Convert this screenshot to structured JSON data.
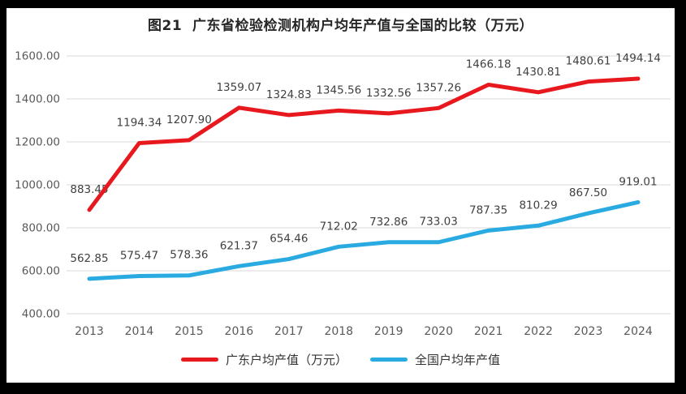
{
  "chart_data": {
    "type": "line",
    "title": "图21  广东省检验检测机构户均年产值与全国的比较（万元）",
    "categories": [
      "2013",
      "2014",
      "2015",
      "2016",
      "2017",
      "2018",
      "2019",
      "2020",
      "2021",
      "2022",
      "2023",
      "2024"
    ],
    "series": [
      {
        "name": "广东户均产值（万元）",
        "color": "#e8191e",
        "values": [
          883.45,
          1194.34,
          1207.9,
          1359.07,
          1324.83,
          1345.56,
          1332.56,
          1357.26,
          1466.18,
          1430.81,
          1480.61,
          1494.14
        ]
      },
      {
        "name": "全国户均年产值",
        "color": "#29abe2",
        "values": [
          562.85,
          575.47,
          578.36,
          621.37,
          654.46,
          712.02,
          732.86,
          733.03,
          787.35,
          810.29,
          867.5,
          919.01
        ]
      }
    ],
    "ylim": [
      400,
      1600
    ],
    "ytick_step": 200,
    "value_label_decimals": 2,
    "grid": true,
    "legend_position": "bottom",
    "colors": {
      "grid": "#d9d9d9",
      "axis_text": "#595959",
      "data_label_text": "#404040",
      "title_text": "#262626",
      "frame_border": "#000000",
      "background": "#ffffff"
    }
  }
}
